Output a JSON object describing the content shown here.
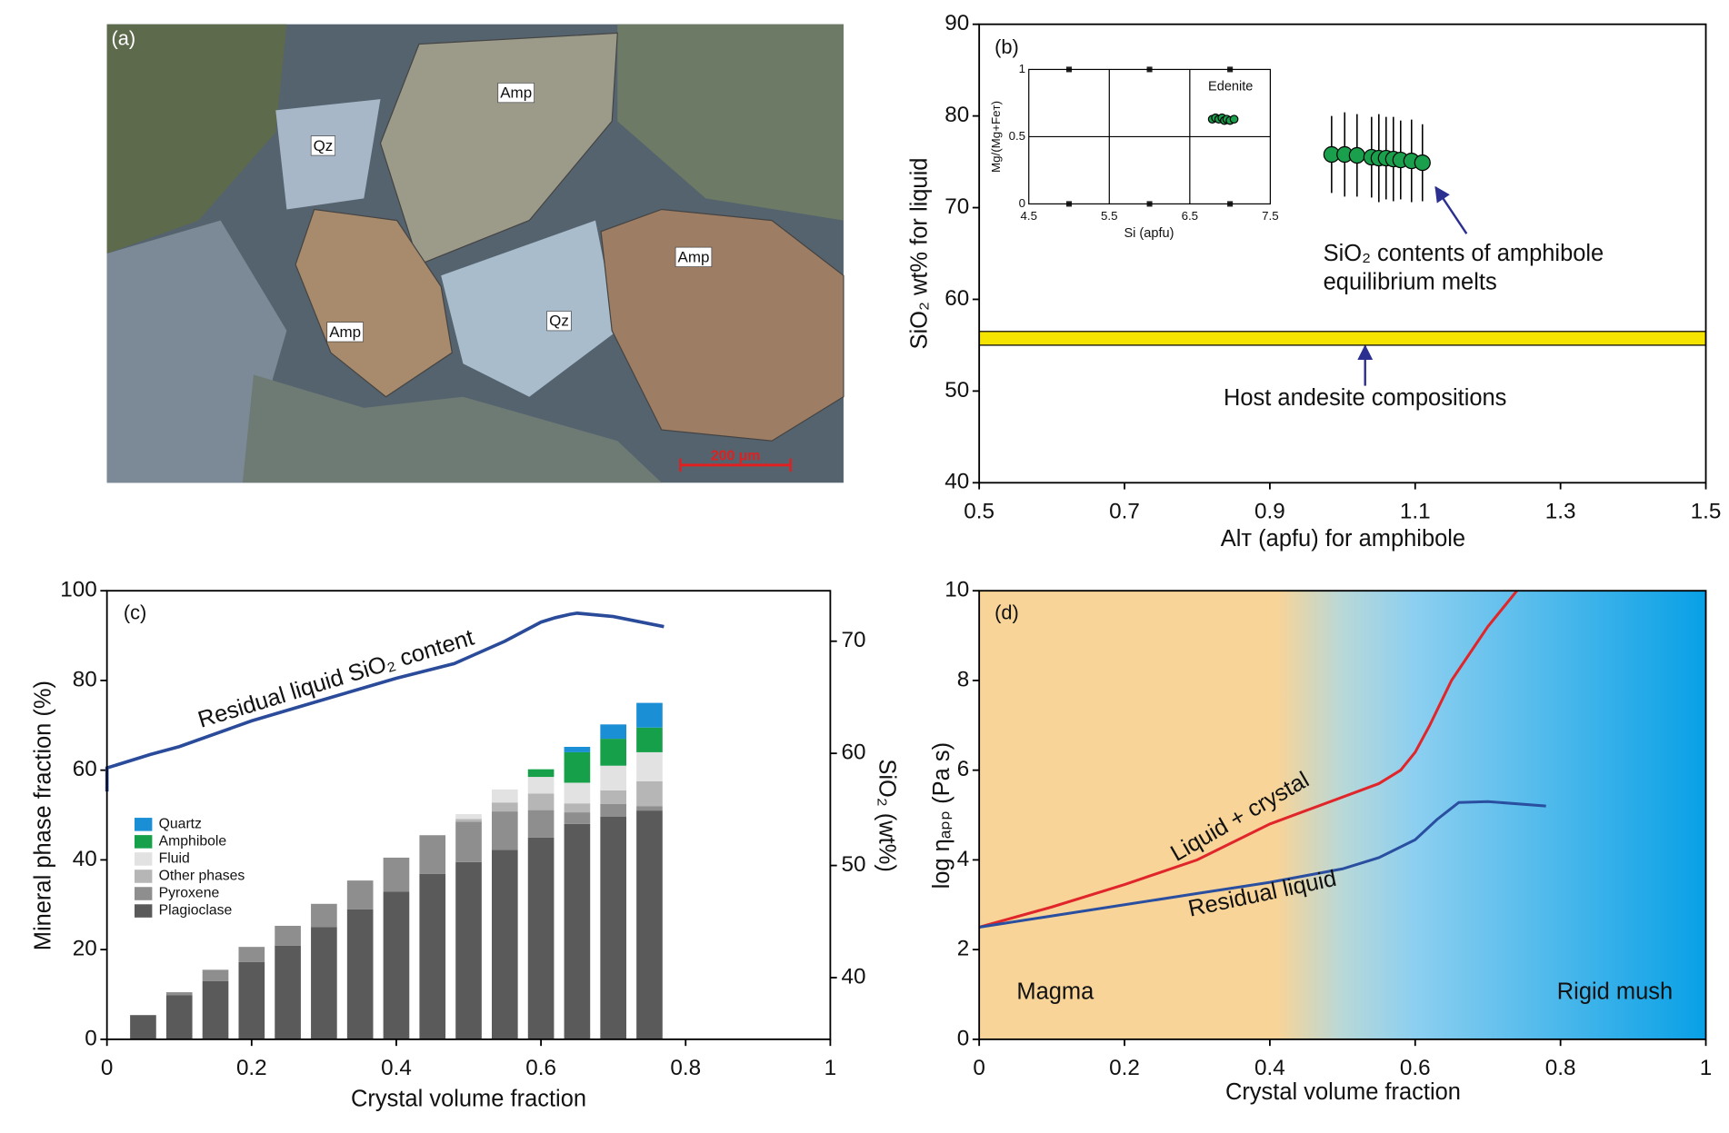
{
  "photo": {
    "label": "(a)",
    "labels": [
      "Amp",
      "Qz",
      "Amp",
      "Amp",
      "Qz"
    ],
    "scale_bar": "200 μm"
  },
  "chart_data": [
    {
      "type": "scatter",
      "label": "(b)",
      "xlabel": "Alᴛ (apfu) for amphibole",
      "ylabel": "SiO₂  wt% for liquid",
      "xlim": [
        0.5,
        1.5
      ],
      "xticks": [
        0.5,
        0.7,
        0.9,
        1.1,
        1.3,
        1.5
      ],
      "ylim": [
        40,
        90
      ],
      "yticks": [
        40,
        50,
        60,
        70,
        80,
        90
      ],
      "x": [
        0.985,
        1.003,
        1.02,
        1.04,
        1.05,
        1.06,
        1.07,
        1.08,
        1.095,
        1.11
      ],
      "values": [
        75.8,
        75.8,
        75.7,
        75.5,
        75.4,
        75.4,
        75.3,
        75.2,
        75.1,
        74.9
      ],
      "errors": [
        4.2,
        4.6,
        4.5,
        4.4,
        4.8,
        4.5,
        4.6,
        4.3,
        4.5,
        4.2
      ],
      "color": "#1aa04c",
      "band": [
        55,
        56.5
      ],
      "band_color": "#f5e400",
      "annotations": [
        "SiO₂ contents of amphibole",
        "equilibrium melts",
        "Host andesite compositions"
      ]
    },
    {
      "type": "scatter",
      "xlabel": "Si (apfu)",
      "ylabel": "Mg/(Mg+Feᴛ)",
      "xlim": [
        4.5,
        7.5
      ],
      "xticks": [
        4.5,
        5.5,
        6.5,
        7.5
      ],
      "xminor": [
        5,
        6,
        7
      ],
      "ylim": [
        0,
        1
      ],
      "yticks": [
        0,
        0.5,
        1
      ],
      "grid": true,
      "x": [
        6.78,
        6.82,
        6.86,
        6.9,
        6.93,
        6.96,
        7.0,
        7.05
      ],
      "values": [
        0.63,
        0.64,
        0.63,
        0.64,
        0.62,
        0.63,
        0.62,
        0.63
      ],
      "color": "#1aa04c",
      "annotations": [
        "Edenite"
      ]
    },
    {
      "type": "bar",
      "stacked": true,
      "label": "(c)",
      "xlabel": "Crystal volume fraction",
      "ylabel": "Mineral phase fraction (%)",
      "y2label": "SiO₂ (wt%)",
      "xlim": [
        0,
        1
      ],
      "xticks": [
        0,
        0.2,
        0.4,
        0.6,
        0.8,
        1
      ],
      "ylim": [
        0,
        100
      ],
      "yticks": [
        0,
        20,
        40,
        60,
        80,
        100
      ],
      "y2lim": [
        34.5,
        74.5
      ],
      "y2ticks": [
        40,
        50,
        60,
        70
      ],
      "x": [
        0.05,
        0.1,
        0.15,
        0.2,
        0.25,
        0.3,
        0.35,
        0.4,
        0.45,
        0.5,
        0.55,
        0.6,
        0.65,
        0.7,
        0.75
      ],
      "series": [
        {
          "name": "Plagioclase",
          "color": "#5a5a5a",
          "values": [
            5.4,
            9.8,
            13,
            17.2,
            20.9,
            25,
            29,
            32.9,
            36.9,
            39.5,
            42.2,
            45,
            48,
            49.6,
            51
          ]
        },
        {
          "name": "Pyroxene",
          "color": "#8e8e8e",
          "values": [
            0,
            0.7,
            2.5,
            3.4,
            4.4,
            5.2,
            6.4,
            7.6,
            8.6,
            9,
            8.6,
            6.1,
            2.6,
            2.9,
            1
          ]
        },
        {
          "name": "Other phases",
          "color": "#b6b6b6",
          "values": [
            0,
            0,
            0,
            0,
            0,
            0,
            0,
            0,
            0,
            0.6,
            2,
            3.7,
            2,
            3,
            5.5
          ]
        },
        {
          "name": "Fluid",
          "color": "#e2e2e2",
          "values": [
            0,
            0,
            0,
            0,
            0,
            0,
            0,
            0,
            0,
            1.1,
            2.9,
            3.7,
            4.6,
            5.5,
            6.5
          ]
        },
        {
          "name": "Amphibole",
          "color": "#16a04a",
          "values": [
            0,
            0,
            0,
            0,
            0,
            0,
            0,
            0,
            0,
            0,
            0,
            1.7,
            6.8,
            6,
            5.5
          ]
        },
        {
          "name": "Quartz",
          "color": "#1a8fd6",
          "values": [
            0,
            0,
            0,
            0,
            0,
            0,
            0,
            0,
            0,
            0,
            0,
            0,
            1.2,
            3.2,
            5.5
          ]
        }
      ],
      "lines": [
        {
          "axis": "y2",
          "color": "#2a4a9a",
          "x": [
            0,
            0,
            0.06,
            0.1,
            0.2,
            0.3,
            0.4,
            0.48,
            0.55,
            0.6,
            0.62,
            0.64,
            0.65,
            0.7,
            0.77
          ],
          "values": [
            56.6,
            58.7,
            59.9,
            60.6,
            62.9,
            64.8,
            66.7,
            68,
            70,
            71.7,
            72.1,
            72.4,
            72.5,
            72.2,
            71.3
          ]
        }
      ],
      "annotations": [
        "Residual liquid SiO₂ content"
      ]
    },
    {
      "type": "line",
      "label": "(d)",
      "xlabel": "Crystal volume fraction",
      "ylabel": "log ηₐₚₚ (Pa s)",
      "xlim": [
        0,
        1
      ],
      "xticks": [
        0,
        0.2,
        0.4,
        0.6,
        0.8,
        1
      ],
      "ylim": [
        0,
        10
      ],
      "yticks": [
        0,
        2,
        4,
        6,
        8,
        10
      ],
      "series": [
        {
          "name": "Liquid + crystal",
          "color": "#e0262a",
          "x": [
            0,
            0.1,
            0.2,
            0.3,
            0.35,
            0.4,
            0.45,
            0.5,
            0.55,
            0.58,
            0.6,
            0.62,
            0.65,
            0.7,
            0.74
          ],
          "values": [
            2.5,
            2.95,
            3.45,
            4,
            4.4,
            4.8,
            5.1,
            5.4,
            5.7,
            6,
            6.4,
            7,
            8,
            9.2,
            10
          ]
        },
        {
          "name": "Residual liquid",
          "color": "#2a4fa0",
          "x": [
            0,
            0.1,
            0.2,
            0.3,
            0.4,
            0.5,
            0.55,
            0.6,
            0.63,
            0.66,
            0.7,
            0.78
          ],
          "values": [
            2.5,
            2.75,
            3,
            3.25,
            3.5,
            3.8,
            4.05,
            4.45,
            4.9,
            5.28,
            5.3,
            5.2
          ]
        }
      ],
      "annotations": [
        "Magma",
        "Rigid mush"
      ]
    }
  ]
}
